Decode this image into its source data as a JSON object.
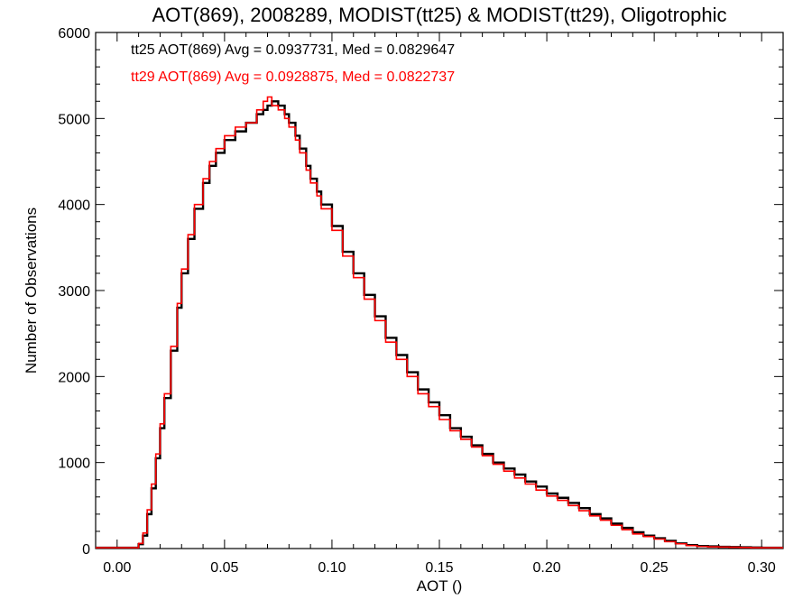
{
  "chart_data": {
    "type": "line",
    "title": "AOT(869), 2008289, MODIST(tt25) & MODIST(tt29), Oligotrophic",
    "xlabel": "AOT ()",
    "ylabel": "Number of Observations",
    "xlim": [
      -0.01,
      0.31
    ],
    "ylim": [
      0,
      6000
    ],
    "xticks": [
      0.0,
      0.05,
      0.1,
      0.15,
      0.2,
      0.25,
      0.3
    ],
    "xtick_labels": [
      "0.00",
      "0.05",
      "0.10",
      "0.15",
      "0.20",
      "0.25",
      "0.30"
    ],
    "yticks": [
      0,
      1000,
      2000,
      3000,
      4000,
      5000,
      6000
    ],
    "ytick_labels": [
      "0",
      "1000",
      "2000",
      "3000",
      "4000",
      "5000",
      "6000"
    ],
    "step": "histogram",
    "annotations": [
      {
        "text": "tt25 AOT(869) Avg = 0.0937731, Med = 0.0829647",
        "color": "#000000"
      },
      {
        "text": "tt29 AOT(869) Avg = 0.0928875, Med = 0.0822737",
        "color": "#ff0000"
      }
    ],
    "series": [
      {
        "color": "#000000",
        "x": [
          -0.01,
          0.0,
          0.01,
          0.012,
          0.014,
          0.016,
          0.018,
          0.02,
          0.022,
          0.025,
          0.028,
          0.03,
          0.033,
          0.036,
          0.04,
          0.043,
          0.046,
          0.05,
          0.055,
          0.06,
          0.065,
          0.068,
          0.07,
          0.072,
          0.075,
          0.078,
          0.08,
          0.083,
          0.085,
          0.088,
          0.09,
          0.093,
          0.095,
          0.1,
          0.105,
          0.11,
          0.115,
          0.12,
          0.125,
          0.13,
          0.135,
          0.14,
          0.145,
          0.15,
          0.155,
          0.16,
          0.165,
          0.17,
          0.175,
          0.18,
          0.185,
          0.19,
          0.195,
          0.2,
          0.205,
          0.21,
          0.215,
          0.22,
          0.225,
          0.23,
          0.235,
          0.24,
          0.245,
          0.25,
          0.255,
          0.26,
          0.265,
          0.27,
          0.275,
          0.28,
          0.285,
          0.29,
          0.295,
          0.3,
          0.305,
          0.31
        ],
        "values": [
          10,
          10,
          50,
          150,
          400,
          700,
          1050,
          1400,
          1750,
          2300,
          2800,
          3200,
          3600,
          3950,
          4250,
          4450,
          4600,
          4750,
          4850,
          4950,
          5050,
          5100,
          5150,
          5200,
          5150,
          5050,
          4950,
          4800,
          4650,
          4450,
          4300,
          4150,
          4000,
          3750,
          3450,
          3200,
          2950,
          2700,
          2450,
          2250,
          2050,
          1850,
          1700,
          1550,
          1400,
          1300,
          1200,
          1100,
          1000,
          930,
          860,
          780,
          720,
          640,
          590,
          530,
          470,
          400,
          350,
          290,
          240,
          190,
          150,
          120,
          90,
          60,
          40,
          30,
          25,
          20,
          18,
          15,
          12,
          10,
          10,
          10
        ]
      },
      {
        "color": "#ff0000",
        "x": [
          -0.01,
          0.0,
          0.01,
          0.012,
          0.014,
          0.016,
          0.018,
          0.02,
          0.022,
          0.025,
          0.028,
          0.03,
          0.033,
          0.036,
          0.04,
          0.043,
          0.046,
          0.05,
          0.055,
          0.06,
          0.065,
          0.068,
          0.07,
          0.072,
          0.075,
          0.078,
          0.08,
          0.083,
          0.085,
          0.088,
          0.09,
          0.093,
          0.095,
          0.1,
          0.105,
          0.11,
          0.115,
          0.12,
          0.125,
          0.13,
          0.135,
          0.14,
          0.145,
          0.15,
          0.155,
          0.16,
          0.165,
          0.17,
          0.175,
          0.18,
          0.185,
          0.19,
          0.195,
          0.2,
          0.205,
          0.21,
          0.215,
          0.22,
          0.225,
          0.23,
          0.235,
          0.24,
          0.245,
          0.25,
          0.255,
          0.26,
          0.265,
          0.27,
          0.275,
          0.28,
          0.285,
          0.29,
          0.295,
          0.3,
          0.305,
          0.31
        ],
        "values": [
          10,
          10,
          60,
          180,
          450,
          750,
          1100,
          1450,
          1800,
          2350,
          2850,
          3250,
          3650,
          4000,
          4300,
          4500,
          4650,
          4800,
          4900,
          4950,
          5100,
          5200,
          5250,
          5150,
          5100,
          5000,
          4900,
          4750,
          4600,
          4400,
          4250,
          4100,
          3950,
          3700,
          3400,
          3150,
          2900,
          2650,
          2400,
          2200,
          2000,
          1800,
          1650,
          1500,
          1370,
          1270,
          1180,
          1080,
          980,
          900,
          820,
          750,
          680,
          610,
          560,
          500,
          440,
          380,
          330,
          270,
          220,
          170,
          140,
          110,
          80,
          55,
          35,
          25,
          20,
          18,
          15,
          12,
          10,
          10,
          10,
          10
        ]
      }
    ]
  }
}
